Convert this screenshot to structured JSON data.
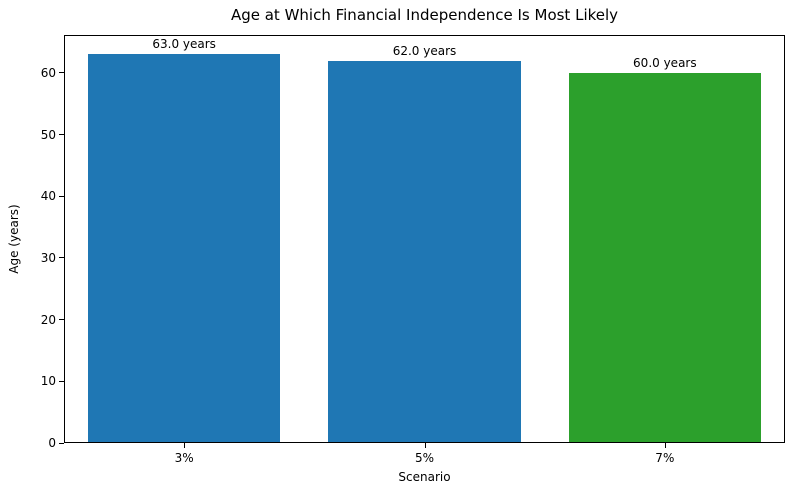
{
  "chart_data": {
    "type": "bar",
    "title": "Age at Which Financial Independence Is Most Likely",
    "xlabel": "Scenario",
    "ylabel": "Age (years)",
    "categories": [
      "3%",
      "5%",
      "7%"
    ],
    "values": [
      63.0,
      62.0,
      60.0
    ],
    "bar_labels": [
      "63.0 years",
      "62.0 years",
      "60.0 years"
    ],
    "bar_colors": [
      "#1f77b4",
      "#1f77b4",
      "#2ca02c"
    ],
    "ylim": [
      0,
      66.15
    ],
    "yticks": [
      0,
      10,
      20,
      30,
      40,
      50,
      60
    ],
    "grid": false,
    "legend_position": "none",
    "bar_width_fraction": 0.8,
    "spine_color": "#000000",
    "background_color": "#ffffff"
  }
}
